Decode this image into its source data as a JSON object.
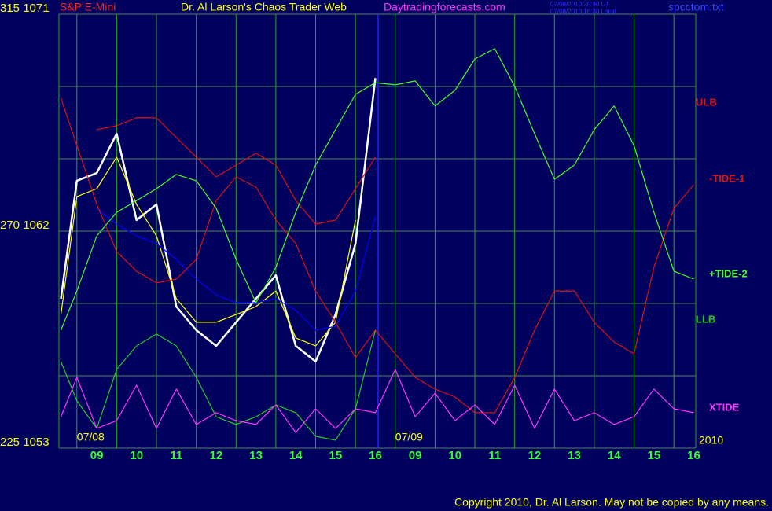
{
  "header": {
    "symbol": "S&P E-Mini",
    "title": "Dr. Al Larson's Chaos Trader Web",
    "site": "Daytradingforecasts.com",
    "time_ut": "07/08/2010 20:30 UT",
    "time_local": "07/08/2010 16:30 Local",
    "file": "spcctom.txt"
  },
  "chart_data": {
    "type": "line",
    "x": [
      -0.4,
      0,
      0.5,
      1,
      1.5,
      2,
      2.5,
      3,
      3.5,
      4,
      4.5,
      5,
      5.5,
      6,
      6.5,
      7,
      7.5,
      8,
      8.5,
      9,
      9.5,
      10,
      10.5,
      11,
      11.5,
      12,
      12.5,
      13,
      13.5,
      14,
      14.5,
      15,
      15.5
    ],
    "xlim": [
      -0.45,
      15.55
    ],
    "xticks": [
      {
        "value": 0.5,
        "label": "09"
      },
      {
        "value": 1.5,
        "label": "10"
      },
      {
        "value": 2.5,
        "label": "11"
      },
      {
        "value": 3.5,
        "label": "12"
      },
      {
        "value": 4.5,
        "label": "13"
      },
      {
        "value": 5.5,
        "label": "14"
      },
      {
        "value": 6.5,
        "label": "15"
      },
      {
        "value": 7.5,
        "label": "16"
      },
      {
        "value": 8.5,
        "label": "09"
      },
      {
        "value": 9.5,
        "label": "10"
      },
      {
        "value": 10.5,
        "label": "11"
      },
      {
        "value": 11.5,
        "label": "12"
      },
      {
        "value": 12.5,
        "label": "13"
      },
      {
        "value": 13.5,
        "label": "14"
      },
      {
        "value": 14.5,
        "label": "15"
      },
      {
        "value": 15.5,
        "label": "16"
      }
    ],
    "xgrid": [
      0,
      1,
      2,
      3,
      4,
      5,
      6,
      7,
      8,
      9,
      10,
      11,
      12,
      13,
      14,
      15
    ],
    "ylim": [
      1053,
      1071
    ],
    "yticks": [
      {
        "value": 1071,
        "label": "315 1071"
      },
      {
        "value": 1062,
        "label": "270 1062"
      },
      {
        "value": 1053,
        "label": "225 1053"
      }
    ],
    "ygrid": [
      1053,
      1056,
      1059,
      1062,
      1065,
      1068,
      1071
    ],
    "now_x": 7.57,
    "date_labels": [
      {
        "text": "07/08",
        "x": 0
      },
      {
        "text": "07/09",
        "x": 8
      }
    ],
    "year": "2010",
    "series": [
      {
        "color": "#ffffff",
        "values": [
          1059.2,
          1064.09,
          1064.41,
          1066.04,
          1062.46,
          1063.11,
          1058.87,
          1057.89,
          1057.24,
          1058.22,
          1059.2,
          1060.17,
          1057.24,
          1056.59,
          1058.54,
          1061.48,
          1068.35,
          null,
          null,
          null,
          null,
          null,
          null,
          null,
          null,
          null,
          null,
          null,
          null,
          null,
          null,
          null,
          null
        ]
      },
      {
        "color": "#ffff00",
        "values": [
          1058.54,
          1063.43,
          1063.76,
          1065.07,
          1063.11,
          1061.8,
          1059.2,
          1058.22,
          1058.22,
          1058.54,
          1058.87,
          1059.52,
          1057.57,
          1057.24,
          1058.22,
          1062.46,
          null,
          null,
          null,
          null,
          null,
          null,
          null,
          null,
          null,
          null,
          null,
          null,
          null,
          null,
          null,
          null,
          null
        ]
      },
      {
        "color": "#0000ff",
        "values": [
          null,
          null,
          1062.95,
          1062.29,
          1061.8,
          1061.48,
          1060.83,
          1060.01,
          1059.36,
          1059.03,
          1059.03,
          1059.2,
          1058.71,
          1057.89,
          1058.05,
          1059.52,
          1062.62,
          null,
          null,
          null,
          null,
          null,
          null,
          null,
          null,
          null,
          null,
          null,
          null,
          null,
          null,
          null,
          null
        ]
      },
      {
        "name": "ULB",
        "color": "#dd1111",
        "values": [
          null,
          null,
          1066.21,
          1066.37,
          1066.7,
          1066.7,
          1065.88,
          1065.07,
          1064.25,
          1064.74,
          1065.23,
          1064.74,
          1063.27,
          1062.29,
          1062.46,
          1063.76,
          1065.07,
          null,
          null,
          null,
          null,
          null,
          null,
          null,
          null,
          null,
          null,
          null,
          null,
          null,
          null,
          null,
          null
        ]
      },
      {
        "name": "-TIDE-1",
        "color": "#dd1111",
        "values": [
          1067.51,
          1065.55,
          1063.11,
          1061.15,
          1060.34,
          1059.85,
          1060.01,
          1060.83,
          1063.27,
          1064.25,
          1063.83,
          1062.46,
          1061.48,
          1059.52,
          1058.22,
          1056.75,
          1057.89,
          1056.91,
          1055.93,
          1055.45,
          1055.12,
          1054.47,
          1054.47,
          1055.93,
          1057.89,
          1059.52,
          1059.52,
          1058.22,
          1057.4,
          1056.91,
          1060.5,
          1062.95,
          1063.92
        ]
      },
      {
        "name": "+TIDE-2",
        "color": "#44ff22",
        "values": [
          1057.89,
          1059.52,
          1061.8,
          1062.78,
          1063.27,
          1063.76,
          1064.35,
          1064.09,
          1062.95,
          1060.83,
          1059.03,
          1060.5,
          1062.78,
          1064.74,
          1066.21,
          1067.67,
          1068.16,
          1068.07,
          1068.23,
          1067.19,
          1067.84,
          1069.14,
          1069.57,
          1068.0,
          1066.04,
          1064.15,
          1064.74,
          1066.21,
          1067.19,
          1065.55,
          1062.78,
          1060.34,
          1060.01
        ]
      },
      {
        "name": "LLB",
        "color": "#22cc22",
        "values": [
          1056.59,
          1054.96,
          1053.82,
          1056.26,
          1057.24,
          1057.73,
          1057.24,
          1055.93,
          1054.3,
          1053.98,
          1054.3,
          1054.79,
          1054.47,
          1053.49,
          1053.33,
          1054.63,
          1057.89,
          null,
          null,
          null,
          null,
          null,
          null,
          null,
          null,
          null,
          null,
          null,
          null,
          null,
          null,
          null,
          null
        ]
      },
      {
        "name": "XTIDE",
        "color": "#ff33ff",
        "values": [
          1054.3,
          1055.93,
          1053.82,
          1054.14,
          1055.61,
          1053.82,
          1055.45,
          1053.98,
          1054.47,
          1054.14,
          1053.98,
          1054.79,
          1053.65,
          1054.63,
          1053.82,
          1054.63,
          1054.47,
          1056.26,
          1054.3,
          1055.28,
          1054.14,
          1054.79,
          1053.98,
          1055.61,
          1053.82,
          1055.45,
          1054.14,
          1054.47,
          1053.98,
          1054.3,
          1055.45,
          1054.63,
          1054.47
        ]
      }
    ]
  },
  "footer": {
    "copyright": "Copyright 2010, Dr. Al Larson. May not be copied by any means."
  }
}
